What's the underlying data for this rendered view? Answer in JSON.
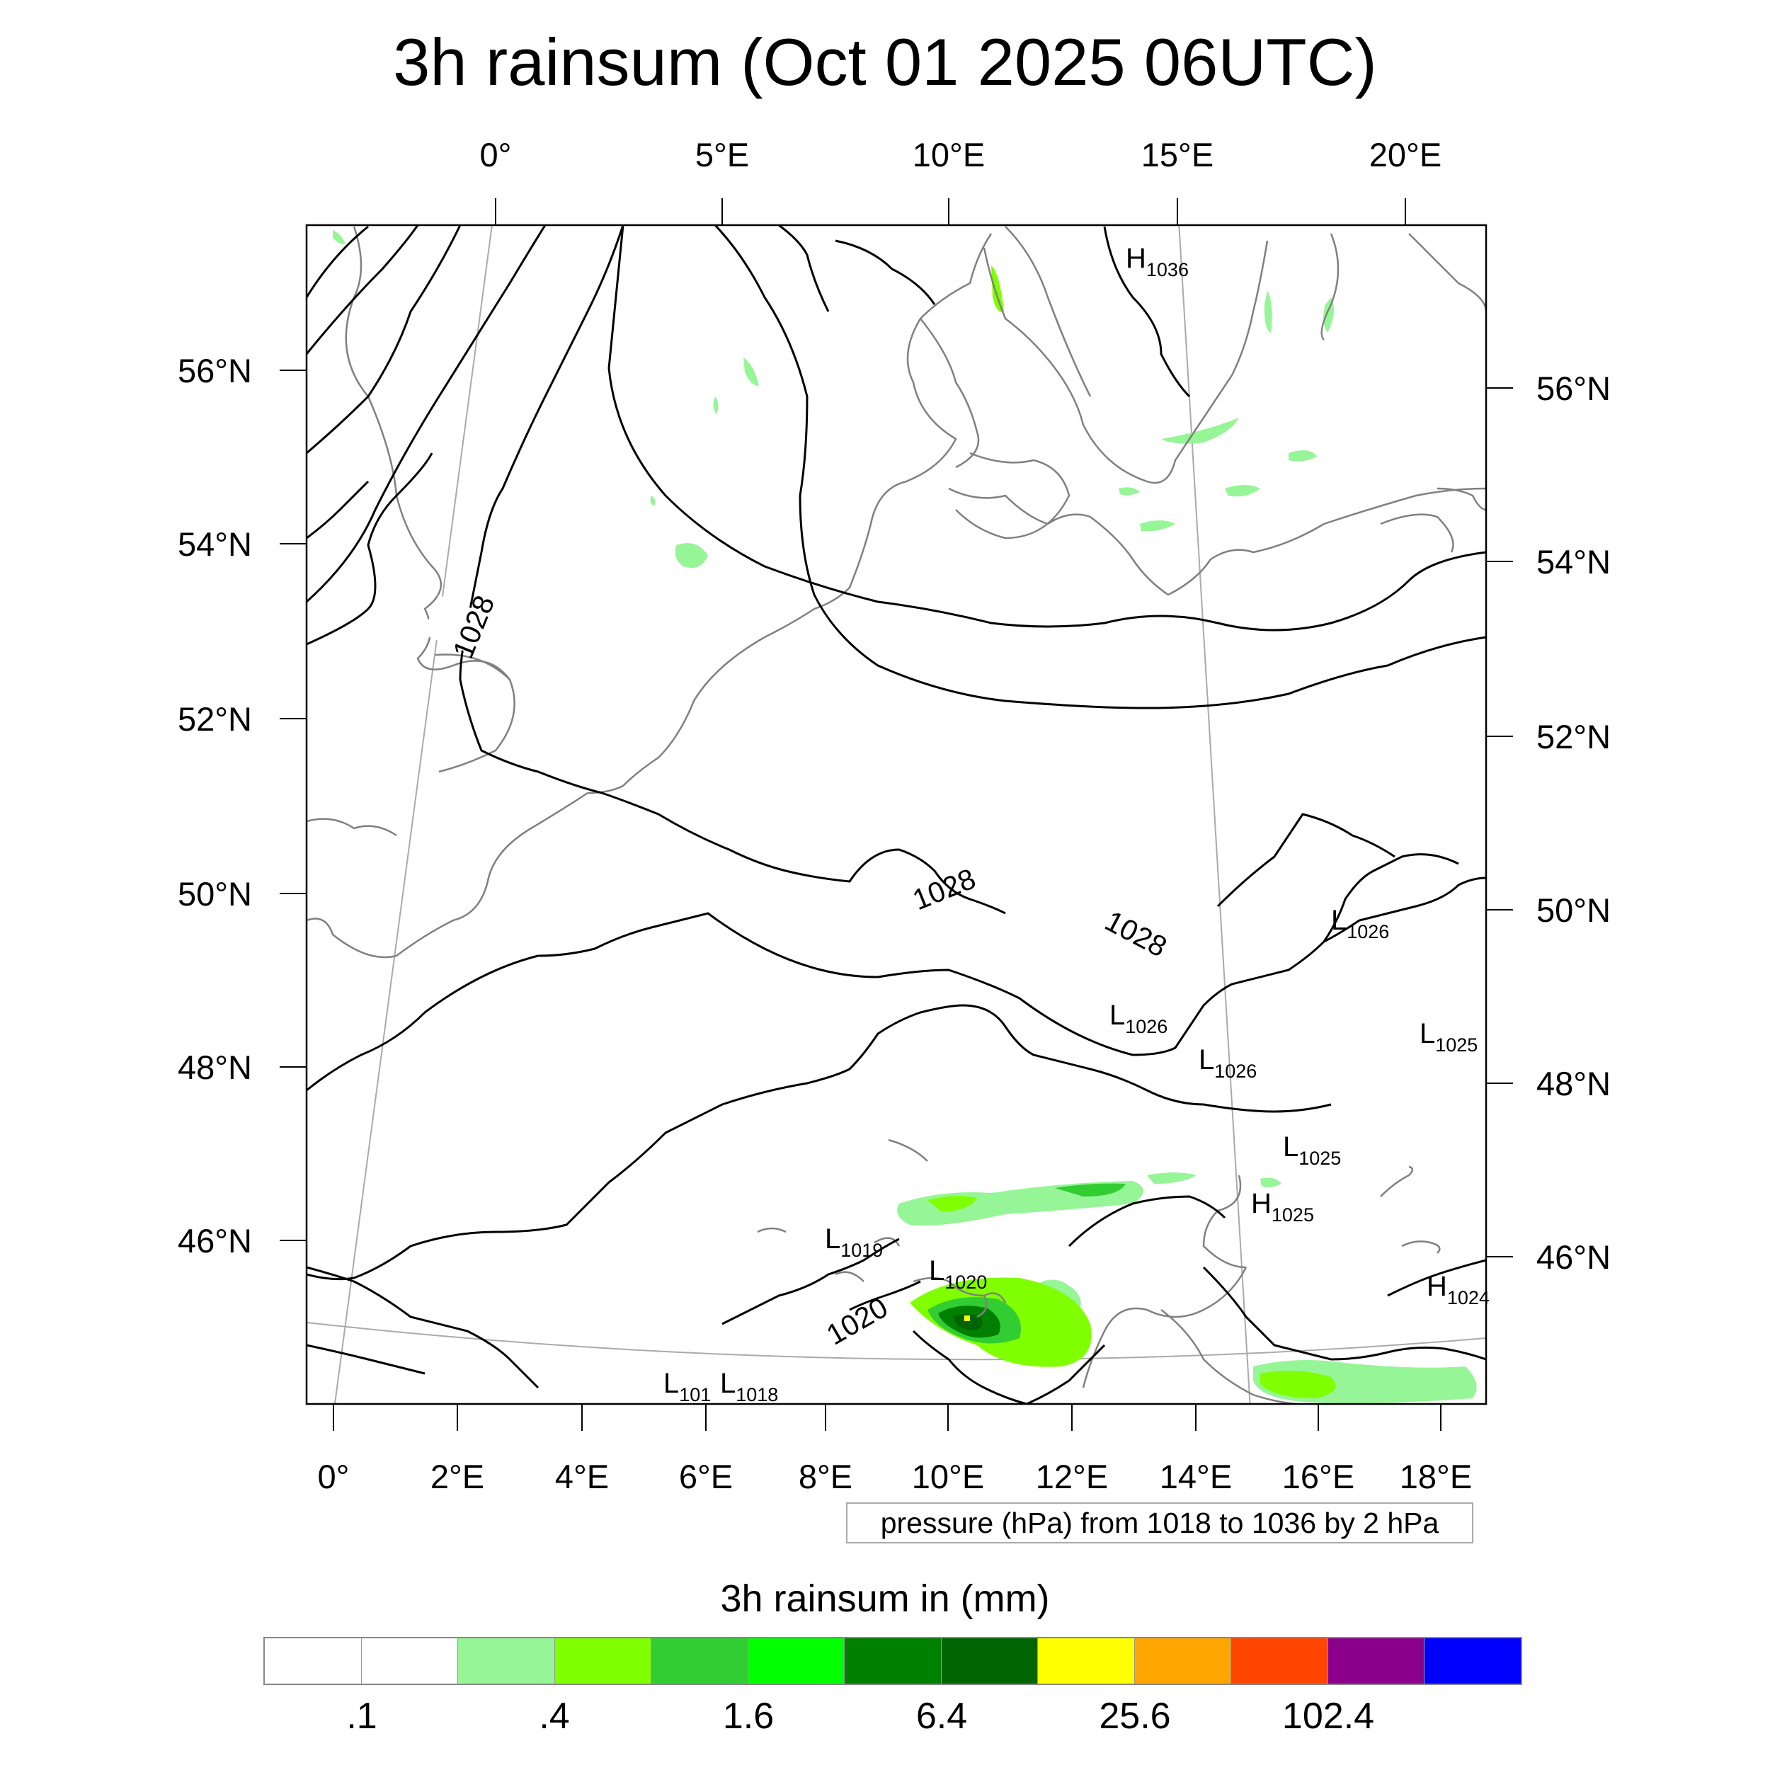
{
  "title": "3h rainsum (Oct 01 2025 06UTC)",
  "map": {
    "top_lon_labels": [
      "0°",
      "5°E",
      "10°E",
      "15°E",
      "20°E"
    ],
    "bottom_lon_labels": [
      "0°",
      "2°E",
      "4°E",
      "6°E",
      "8°E",
      "10°E",
      "12°E",
      "14°E",
      "16°E",
      "18°E"
    ],
    "left_lat_labels": [
      "56°N",
      "54°N",
      "52°N",
      "50°N",
      "48°N",
      "46°N"
    ],
    "right_lat_labels": [
      "56°N",
      "54°N",
      "52°N",
      "50°N",
      "48°N",
      "46°N"
    ],
    "contour_labels": [
      "1028",
      "1028",
      "1028",
      "1020"
    ],
    "extrema": [
      {
        "type": "H",
        "value": "1036"
      },
      {
        "type": "L",
        "value": "1026"
      },
      {
        "type": "L",
        "value": "1026"
      },
      {
        "type": "L",
        "value": "1026"
      },
      {
        "type": "L",
        "value": "1025"
      },
      {
        "type": "L",
        "value": "1025"
      },
      {
        "type": "H",
        "value": "1025"
      },
      {
        "type": "L",
        "value": "1019"
      },
      {
        "type": "L",
        "value": "1020"
      },
      {
        "type": "H",
        "value": "1024"
      },
      {
        "type": "L",
        "value": "101"
      },
      {
        "type": "L",
        "value": "1018"
      }
    ],
    "colors": {
      "isobar": "#000000",
      "coastline": "#808080",
      "graticule": "#aaaaaa"
    }
  },
  "info_box": "pressure (hPa) from 1018 to 1036 by 2 hPa",
  "legend": {
    "title": "3h rainsum in (mm)",
    "colors": [
      "#ffffff",
      "#ffffff",
      "#96f596",
      "#80ff00",
      "#32cd32",
      "#00ff00",
      "#008000",
      "#006400",
      "#ffff00",
      "#ffa500",
      "#ff4500",
      "#8b008b",
      "#0000ff"
    ],
    "labels": [
      ".1",
      ".4",
      "1.6",
      "6.4",
      "25.6",
      "102.4"
    ]
  }
}
